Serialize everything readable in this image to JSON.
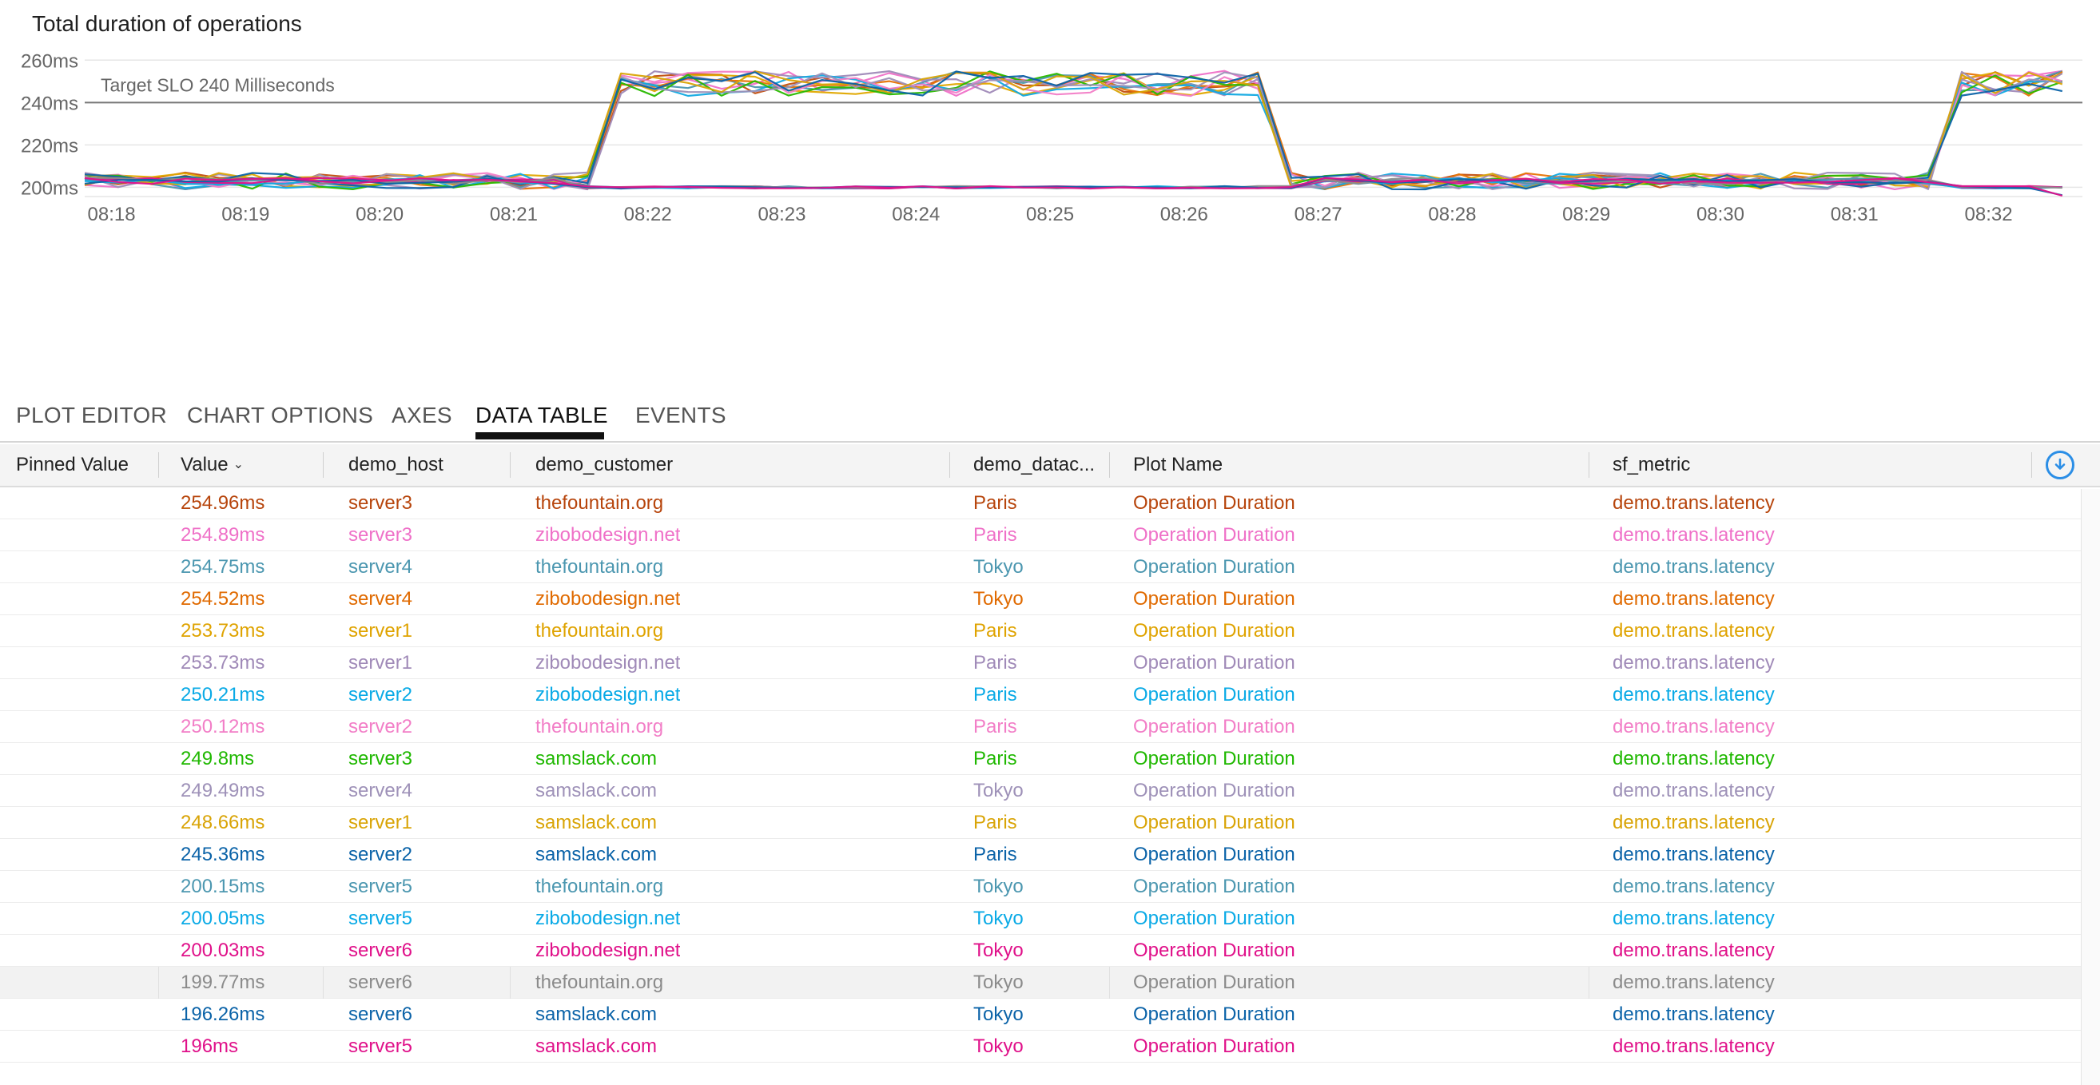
{
  "chart": {
    "title": "Total duration of operations"
  },
  "chart_data": {
    "type": "line",
    "title": "Total duration of operations",
    "xlabel": "",
    "ylabel": "",
    "x_ticks": [
      "08:18",
      "08:19",
      "08:20",
      "08:21",
      "08:22",
      "08:23",
      "08:24",
      "08:25",
      "08:26",
      "08:27",
      "08:28",
      "08:29",
      "08:30",
      "08:31",
      "08:32"
    ],
    "xlim": [
      "08:17:48",
      "08:32:42"
    ],
    "y_ticks": [
      "200ms",
      "220ms",
      "240ms",
      "260ms"
    ],
    "ylim": [
      196,
      262
    ],
    "y_unit": "ms",
    "grid": true,
    "legend": "none",
    "annotation": {
      "label": "Target SLO 240 Milliseconds",
      "value": 240
    },
    "series_profile": {
      "high_group": {
        "low_level": 203,
        "high_level": 249,
        "high_intervals": [
          [
            "08:21:42",
            "08:26:45"
          ],
          [
            "08:31:40",
            "08:32:42"
          ]
        ]
      },
      "low_group": {
        "low_level": 200,
        "high_level": 203,
        "high_intervals": [
          [
            "08:17:48",
            "08:21:30"
          ],
          [
            "08:26:50",
            "08:31:35"
          ]
        ]
      }
    },
    "series": [
      {
        "color": "#c24e0f",
        "group": "high",
        "last": 254.96
      },
      {
        "color": "#ef71c8",
        "group": "high",
        "last": 254.89
      },
      {
        "color": "#4c97b0",
        "group": "high",
        "last": 254.75
      },
      {
        "color": "#e77305",
        "group": "high",
        "last": 254.52
      },
      {
        "color": "#e0a800",
        "group": "high",
        "last": 253.73
      },
      {
        "color": "#a08ab8",
        "group": "high",
        "last": 253.73
      },
      {
        "color": "#11a9e2",
        "group": "high",
        "last": 250.21
      },
      {
        "color": "#f27ec7",
        "group": "high",
        "last": 250.12
      },
      {
        "color": "#29b800",
        "group": "high",
        "last": 249.8
      },
      {
        "color": "#9e91b8",
        "group": "high",
        "last": 249.49
      },
      {
        "color": "#d9a406",
        "group": "high",
        "last": 248.66
      },
      {
        "color": "#0b63a8",
        "group": "high",
        "last": 245.36
      },
      {
        "color": "#4c97b0",
        "group": "low",
        "last": 200.15
      },
      {
        "color": "#11a9e2",
        "group": "low",
        "last": 200.05
      },
      {
        "color": "#e0118a",
        "group": "low",
        "last": 200.03
      },
      {
        "color": "#8b8b8b",
        "group": "low",
        "last": 199.77
      },
      {
        "color": "#0b63a8",
        "group": "low",
        "last": 196.26
      },
      {
        "color": "#e0118a",
        "group": "low",
        "last": 196.0
      }
    ]
  },
  "tabs": [
    {
      "label": "PLOT EDITOR",
      "active": false
    },
    {
      "label": "CHART OPTIONS",
      "active": false
    },
    {
      "label": "AXES",
      "active": false
    },
    {
      "label": "DATA TABLE",
      "active": true
    },
    {
      "label": "EVENTS",
      "active": false
    }
  ],
  "table": {
    "columns": [
      "Pinned Value",
      "Value",
      "demo_host",
      "demo_customer",
      "demo_datac...",
      "Plot Name",
      "sf_metric"
    ],
    "sort_icon": "chevron-down-icon",
    "download_icon": "download-icon",
    "rows": [
      {
        "pinned": "",
        "value": "254.96ms",
        "host": "server3",
        "customer": "thefountain.org",
        "datacenter": "Paris",
        "plot": "Operation Duration",
        "metric": "demo.trans.latency",
        "color": "#b7450c"
      },
      {
        "pinned": "",
        "value": "254.89ms",
        "host": "server3",
        "customer": "zibobodesign.net",
        "datacenter": "Paris",
        "plot": "Operation Duration",
        "metric": "demo.trans.latency",
        "color": "#ef71c8"
      },
      {
        "pinned": "",
        "value": "254.75ms",
        "host": "server4",
        "customer": "thefountain.org",
        "datacenter": "Tokyo",
        "plot": "Operation Duration",
        "metric": "demo.trans.latency",
        "color": "#4c97b0"
      },
      {
        "pinned": "",
        "value": "254.52ms",
        "host": "server4",
        "customer": "zibobodesign.net",
        "datacenter": "Tokyo",
        "plot": "Operation Duration",
        "metric": "demo.trans.latency",
        "color": "#e06a00"
      },
      {
        "pinned": "",
        "value": "253.73ms",
        "host": "server1",
        "customer": "thefountain.org",
        "datacenter": "Paris",
        "plot": "Operation Duration",
        "metric": "demo.trans.latency",
        "color": "#dfa300"
      },
      {
        "pinned": "",
        "value": "253.73ms",
        "host": "server1",
        "customer": "zibobodesign.net",
        "datacenter": "Paris",
        "plot": "Operation Duration",
        "metric": "demo.trans.latency",
        "color": "#a08ab8"
      },
      {
        "pinned": "",
        "value": "250.21ms",
        "host": "server2",
        "customer": "zibobodesign.net",
        "datacenter": "Paris",
        "plot": "Operation Duration",
        "metric": "demo.trans.latency",
        "color": "#0aaae6"
      },
      {
        "pinned": "",
        "value": "250.12ms",
        "host": "server2",
        "customer": "thefountain.org",
        "datacenter": "Paris",
        "plot": "Operation Duration",
        "metric": "demo.trans.latency",
        "color": "#f27ec7"
      },
      {
        "pinned": "",
        "value": "249.8ms",
        "host": "server3",
        "customer": "samslack.com",
        "datacenter": "Paris",
        "plot": "Operation Duration",
        "metric": "demo.trans.latency",
        "color": "#1fb800"
      },
      {
        "pinned": "",
        "value": "249.49ms",
        "host": "server4",
        "customer": "samslack.com",
        "datacenter": "Tokyo",
        "plot": "Operation Duration",
        "metric": "demo.trans.latency",
        "color": "#9e91b8"
      },
      {
        "pinned": "",
        "value": "248.66ms",
        "host": "server1",
        "customer": "samslack.com",
        "datacenter": "Paris",
        "plot": "Operation Duration",
        "metric": "demo.trans.latency",
        "color": "#d9a406"
      },
      {
        "pinned": "",
        "value": "245.36ms",
        "host": "server2",
        "customer": "samslack.com",
        "datacenter": "Paris",
        "plot": "Operation Duration",
        "metric": "demo.trans.latency",
        "color": "#0b63a8"
      },
      {
        "pinned": "",
        "value": "200.15ms",
        "host": "server5",
        "customer": "thefountain.org",
        "datacenter": "Tokyo",
        "plot": "Operation Duration",
        "metric": "demo.trans.latency",
        "color": "#4c97b0"
      },
      {
        "pinned": "",
        "value": "200.05ms",
        "host": "server5",
        "customer": "zibobodesign.net",
        "datacenter": "Tokyo",
        "plot": "Operation Duration",
        "metric": "demo.trans.latency",
        "color": "#0aaae6"
      },
      {
        "pinned": "",
        "value": "200.03ms",
        "host": "server6",
        "customer": "zibobodesign.net",
        "datacenter": "Tokyo",
        "plot": "Operation Duration",
        "metric": "demo.trans.latency",
        "color": "#e0118a"
      },
      {
        "pinned": "",
        "value": "199.77ms",
        "host": "server6",
        "customer": "thefountain.org",
        "datacenter": "Tokyo",
        "plot": "Operation Duration",
        "metric": "demo.trans.latency",
        "color": "#8b8b8b",
        "highlighted": true
      },
      {
        "pinned": "",
        "value": "196.26ms",
        "host": "server6",
        "customer": "samslack.com",
        "datacenter": "Tokyo",
        "plot": "Operation Duration",
        "metric": "demo.trans.latency",
        "color": "#0b63a8"
      },
      {
        "pinned": "",
        "value": "196ms",
        "host": "server5",
        "customer": "samslack.com",
        "datacenter": "Tokyo",
        "plot": "Operation Duration",
        "metric": "demo.trans.latency",
        "color": "#e0118a"
      }
    ]
  }
}
